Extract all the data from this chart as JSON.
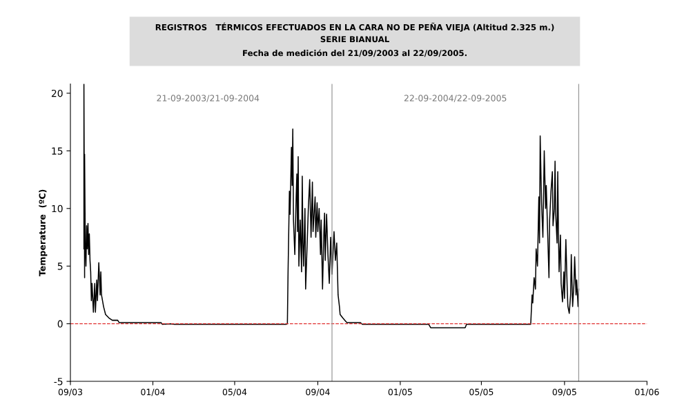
{
  "chart_data": {
    "type": "line",
    "title": "REGISTROS   TÉRMICOS EFECTUADOS EN LA CARA NO DE PEÑA VIEJA (Altitud 2.325 m.)",
    "subtitle": "SERIE BIANUAL",
    "ylabel": "Temperature  (ºC)",
    "annotations": [
      "Fecha de medición del 21/09/2003 al 22/09/2005.",
      "21-09-2003/21-09-2004",
      "22-09-2004/22-09-2005"
    ],
    "x": [
      "2003-09-21",
      "2003-09-21",
      "2003-09-22",
      "2003-09-22",
      "2003-09-23",
      "2003-09-24",
      "2003-09-25",
      "2003-09-26",
      "2003-09-27",
      "2003-09-28",
      "2003-09-29",
      "2003-09-30",
      "2003-10-01",
      "2003-10-02",
      "2003-10-03",
      "2003-10-05",
      "2003-10-07",
      "2003-10-08",
      "2003-10-10",
      "2003-10-11",
      "2003-10-13",
      "2003-10-15",
      "2003-10-16",
      "2003-10-17",
      "2003-10-20",
      "2003-10-23",
      "2003-10-28",
      "2003-11-02",
      "2003-11-10",
      "2003-11-12",
      "2004-01-13",
      "2004-01-15",
      "2004-01-27",
      "2004-02-02",
      "2004-07-16",
      "2004-07-18",
      "2004-07-19",
      "2004-07-20",
      "2004-07-21",
      "2004-07-22",
      "2004-07-24",
      "2004-07-25",
      "2004-07-26",
      "2004-07-27",
      "2004-07-29",
      "2004-07-31",
      "2004-08-01",
      "2004-08-02",
      "2004-08-03",
      "2004-08-04",
      "2004-08-06",
      "2004-08-08",
      "2004-08-09",
      "2004-08-10",
      "2004-08-11",
      "2004-08-13",
      "2004-08-14",
      "2004-08-16",
      "2004-08-18",
      "2004-08-20",
      "2004-08-22",
      "2004-08-24",
      "2004-08-25",
      "2004-08-28",
      "2004-08-29",
      "2004-08-31",
      "2004-09-01",
      "2004-09-03",
      "2004-09-05",
      "2004-09-06",
      "2004-09-08",
      "2004-09-10",
      "2004-09-11",
      "2004-09-12",
      "2004-09-14",
      "2004-09-16",
      "2004-09-18",
      "2004-09-20",
      "2004-09-22",
      "2004-09-25",
      "2004-09-27",
      "2004-09-29",
      "2004-10-01",
      "2004-10-03",
      "2004-10-04",
      "2004-10-08",
      "2004-10-11",
      "2004-10-14",
      "2004-11-03",
      "2004-11-06",
      "2005-02-12",
      "2005-02-15",
      "2005-04-07",
      "2005-04-09",
      "2005-07-13",
      "2005-07-15",
      "2005-07-16",
      "2005-07-18",
      "2005-07-20",
      "2005-07-21",
      "2005-07-23",
      "2005-07-25",
      "2005-07-26",
      "2005-07-27",
      "2005-07-29",
      "2005-07-31",
      "2005-08-02",
      "2005-08-04",
      "2005-08-05",
      "2005-08-07",
      "2005-08-09",
      "2005-08-10",
      "2005-08-12",
      "2005-08-14",
      "2005-08-15",
      "2005-08-17",
      "2005-08-18",
      "2005-08-19",
      "2005-08-21",
      "2005-08-22",
      "2005-08-23",
      "2005-08-24",
      "2005-08-26",
      "2005-08-27",
      "2005-08-29",
      "2005-08-31",
      "2005-09-01",
      "2005-09-03",
      "2005-09-05",
      "2005-09-06",
      "2005-09-08",
      "2005-09-10",
      "2005-09-11",
      "2005-09-13",
      "2005-09-15",
      "2005-09-16",
      "2005-09-18",
      "2005-09-19",
      "2005-09-21",
      "2005-09-22"
    ],
    "series": [
      {
        "color": "#000000",
        "values": [
          6.5,
          20.8,
          4.0,
          14.7,
          7.0,
          5.0,
          8.5,
          6.5,
          8.7,
          6.0,
          7.8,
          5.5,
          4.5,
          2.0,
          3.5,
          1.0,
          3.5,
          1.0,
          3.8,
          2.0,
          5.3,
          2.5,
          4.5,
          2.5,
          1.5,
          0.8,
          0.5,
          0.3,
          0.3,
          0.1,
          0.1,
          -0.05,
          0.0,
          -0.05,
          -0.05,
          0.0,
          4.5,
          8,
          11.5,
          9.5,
          15.3,
          12,
          16.9,
          9,
          6,
          11,
          13,
          8,
          14.5,
          5,
          9,
          4.5,
          12.8,
          7,
          5,
          10,
          3,
          6.5,
          10,
          12.5,
          7.5,
          12.3,
          8,
          11,
          7.5,
          10.5,
          8,
          10,
          6,
          9,
          3,
          8,
          9.6,
          5.5,
          9.5,
          6,
          3.5,
          7.5,
          4.3,
          8,
          5.5,
          7,
          2.5,
          1.5,
          0.8,
          0.5,
          0.3,
          0.1,
          0.1,
          -0.05,
          -0.05,
          -0.35,
          -0.35,
          -0.05,
          -0.05,
          2.5,
          1.8,
          4,
          3,
          6.5,
          5,
          11,
          7,
          16.3,
          10.5,
          7.5,
          15,
          10,
          12,
          8,
          4,
          9,
          11.5,
          13.2,
          8.5,
          10,
          14.1,
          9.5,
          7,
          13.2,
          8,
          4.5,
          7.7,
          3.5,
          1.9,
          4.5,
          2.2,
          7.3,
          3,
          1.5,
          0.9,
          2.5,
          6,
          1.5,
          3.5,
          5.8,
          2.5,
          3.8,
          1.5,
          3.0
        ]
      }
    ],
    "xlim": [
      "2003-09-01",
      "2006-01-01"
    ],
    "xticks": [
      {
        "value": "2003-09-01",
        "label": "09/03"
      },
      {
        "value": "2004-01-01",
        "label": "01/04"
      },
      {
        "value": "2004-05-01",
        "label": "05/04"
      },
      {
        "value": "2004-09-01",
        "label": "09/04"
      },
      {
        "value": "2005-01-01",
        "label": "01/05"
      },
      {
        "value": "2005-05-01",
        "label": "05/05"
      },
      {
        "value": "2005-09-01",
        "label": "09/05"
      },
      {
        "value": "2006-01-01",
        "label": "01/06"
      }
    ],
    "ylim": [
      -5,
      20.8
    ],
    "yticks": [
      -5,
      0,
      5,
      10,
      15,
      20
    ],
    "ref_lines": [
      {
        "axis": "y",
        "value": 0,
        "color": "#e03030",
        "line_style": "dashed"
      },
      {
        "axis": "x",
        "value": "2004-09-22",
        "color": "#999999",
        "line_style": "solid"
      },
      {
        "axis": "x",
        "value": "2005-09-22",
        "color": "#999999",
        "line_style": "solid"
      }
    ],
    "grid": false,
    "marker": "none",
    "line_style": "solid"
  }
}
